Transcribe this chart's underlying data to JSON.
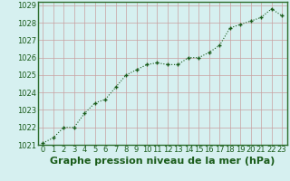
{
  "x": [
    0,
    1,
    2,
    3,
    4,
    5,
    6,
    7,
    8,
    9,
    10,
    11,
    12,
    13,
    14,
    15,
    16,
    17,
    18,
    19,
    20,
    21,
    22,
    23
  ],
  "y": [
    1021.1,
    1021.4,
    1022.0,
    1022.0,
    1022.8,
    1023.4,
    1023.6,
    1024.3,
    1025.0,
    1025.3,
    1025.6,
    1025.7,
    1025.6,
    1025.6,
    1026.0,
    1026.0,
    1026.3,
    1026.7,
    1027.7,
    1027.9,
    1028.1,
    1028.3,
    1028.8,
    1028.4
  ],
  "title": "Graphe pression niveau de la mer (hPa)",
  "xlim": [
    -0.5,
    23.5
  ],
  "ylim": [
    1021.0,
    1029.2
  ],
  "yticks": [
    1021,
    1022,
    1023,
    1024,
    1025,
    1026,
    1027,
    1028,
    1029
  ],
  "xticks": [
    0,
    1,
    2,
    3,
    4,
    5,
    6,
    7,
    8,
    9,
    10,
    11,
    12,
    13,
    14,
    15,
    16,
    17,
    18,
    19,
    20,
    21,
    22,
    23
  ],
  "line_color": "#1a5c1a",
  "marker": "+",
  "bg_color": "#d6f0f0",
  "grid_color": "#c8a0a0",
  "title_fontsize": 8,
  "tick_fontsize": 6,
  "title_fontweight": "bold",
  "spine_color": "#2d6e2d"
}
